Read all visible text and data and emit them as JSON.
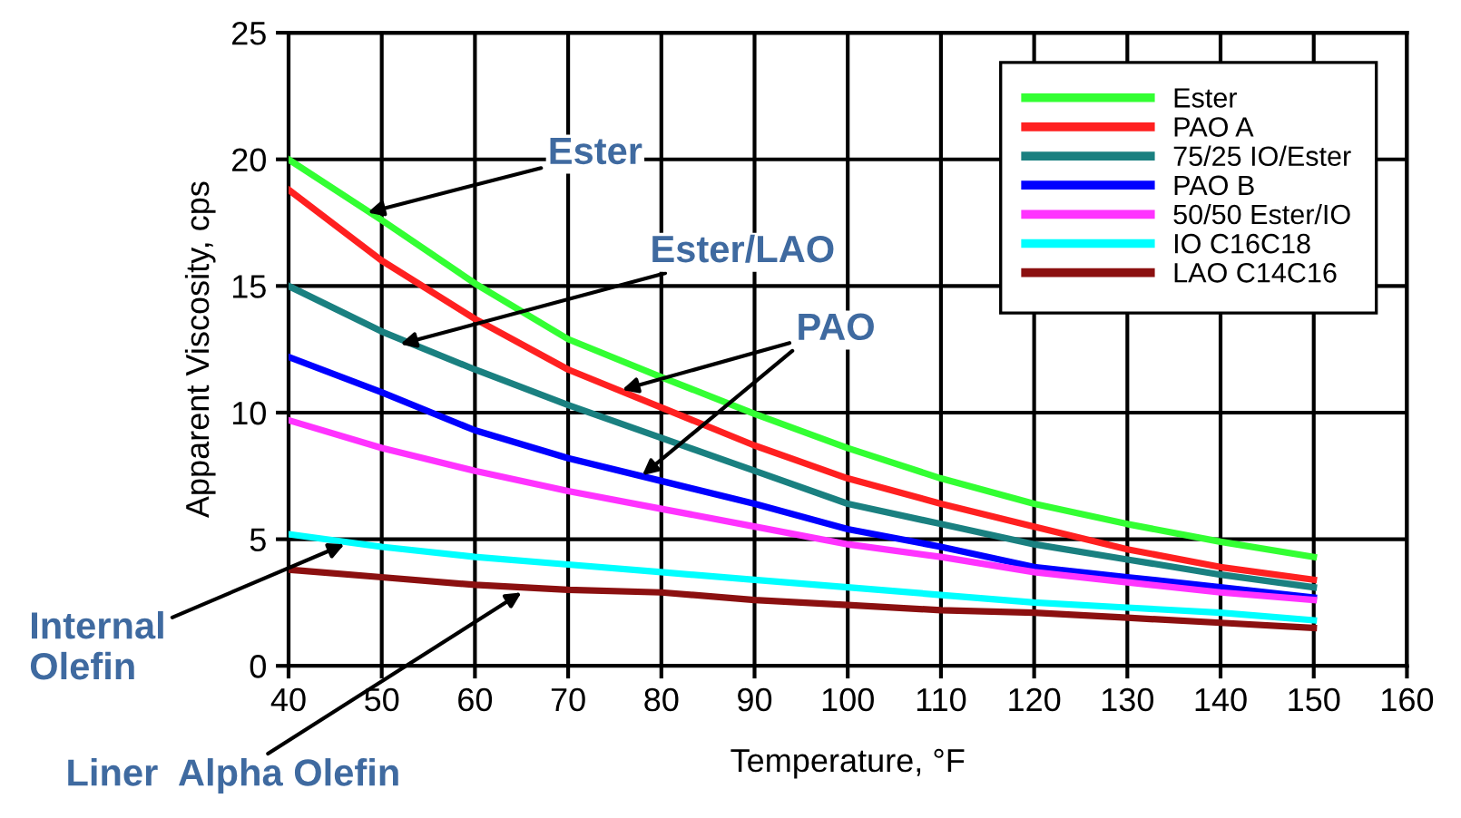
{
  "chart_data": {
    "type": "line",
    "xlabel": "Temperature, °F",
    "ylabel": "Apparent Viscosity, cps",
    "x": [
      40,
      50,
      60,
      70,
      80,
      90,
      100,
      110,
      120,
      130,
      140,
      150
    ],
    "series": [
      {
        "name": "Ester",
        "color": "#33ff33",
        "values": [
          20.0,
          17.6,
          15.1,
          12.9,
          11.4,
          9.95,
          8.6,
          7.4,
          6.4,
          5.6,
          4.9,
          4.3
        ]
      },
      {
        "name": "PAO A",
        "color": "#ff2020",
        "values": [
          18.8,
          16.0,
          13.7,
          11.7,
          10.2,
          8.7,
          7.4,
          6.4,
          5.5,
          4.6,
          3.9,
          3.4
        ]
      },
      {
        "name": "75/25 IO/Ester",
        "color": "#1a8080",
        "values": [
          15.0,
          13.2,
          11.7,
          10.3,
          9.0,
          7.7,
          6.4,
          5.6,
          4.8,
          4.2,
          3.6,
          3.1
        ]
      },
      {
        "name": "PAO B",
        "color": "#0000ff",
        "values": [
          12.2,
          10.8,
          9.3,
          8.2,
          7.3,
          6.4,
          5.4,
          4.7,
          3.9,
          3.5,
          3.1,
          2.7
        ]
      },
      {
        "name": "50/50 Ester/IO",
        "color": "#ff33ff",
        "values": [
          9.7,
          8.6,
          7.7,
          6.9,
          6.2,
          5.5,
          4.8,
          4.3,
          3.7,
          3.3,
          2.9,
          2.6
        ]
      },
      {
        "name": "IO C16C18",
        "color": "#00ffff",
        "values": [
          5.2,
          4.7,
          4.3,
          4.0,
          3.7,
          3.4,
          3.1,
          2.8,
          2.5,
          2.3,
          2.1,
          1.8
        ]
      },
      {
        "name": "LAO C14C16",
        "color": "#8b1010",
        "values": [
          3.8,
          3.5,
          3.2,
          3.0,
          2.9,
          2.6,
          2.4,
          2.2,
          2.1,
          1.9,
          1.7,
          1.5
        ]
      }
    ],
    "xlim": [
      40,
      160
    ],
    "xticks": [
      40,
      50,
      60,
      70,
      80,
      90,
      100,
      110,
      120,
      130,
      140,
      150,
      160
    ],
    "ylim": [
      0,
      25
    ],
    "yticks": [
      0,
      5,
      10,
      15,
      20,
      25
    ],
    "grid": true,
    "legend": "top right",
    "marker": "none",
    "line_style": "solid",
    "annotations": [
      {
        "text": "Ester",
        "x": 48.5,
        "y": 17.9
      },
      {
        "text": "Ester/LAO",
        "x": 52,
        "y": 12.7
      },
      {
        "text": "PAO",
        "x": 75.8,
        "y": 10.9
      },
      {
        "text": "Internal\nOlefin",
        "x": 46,
        "y": 4.8
      },
      {
        "text": "Liner  Alpha Olefin",
        "x": 65,
        "y": 2.9
      }
    ]
  }
}
